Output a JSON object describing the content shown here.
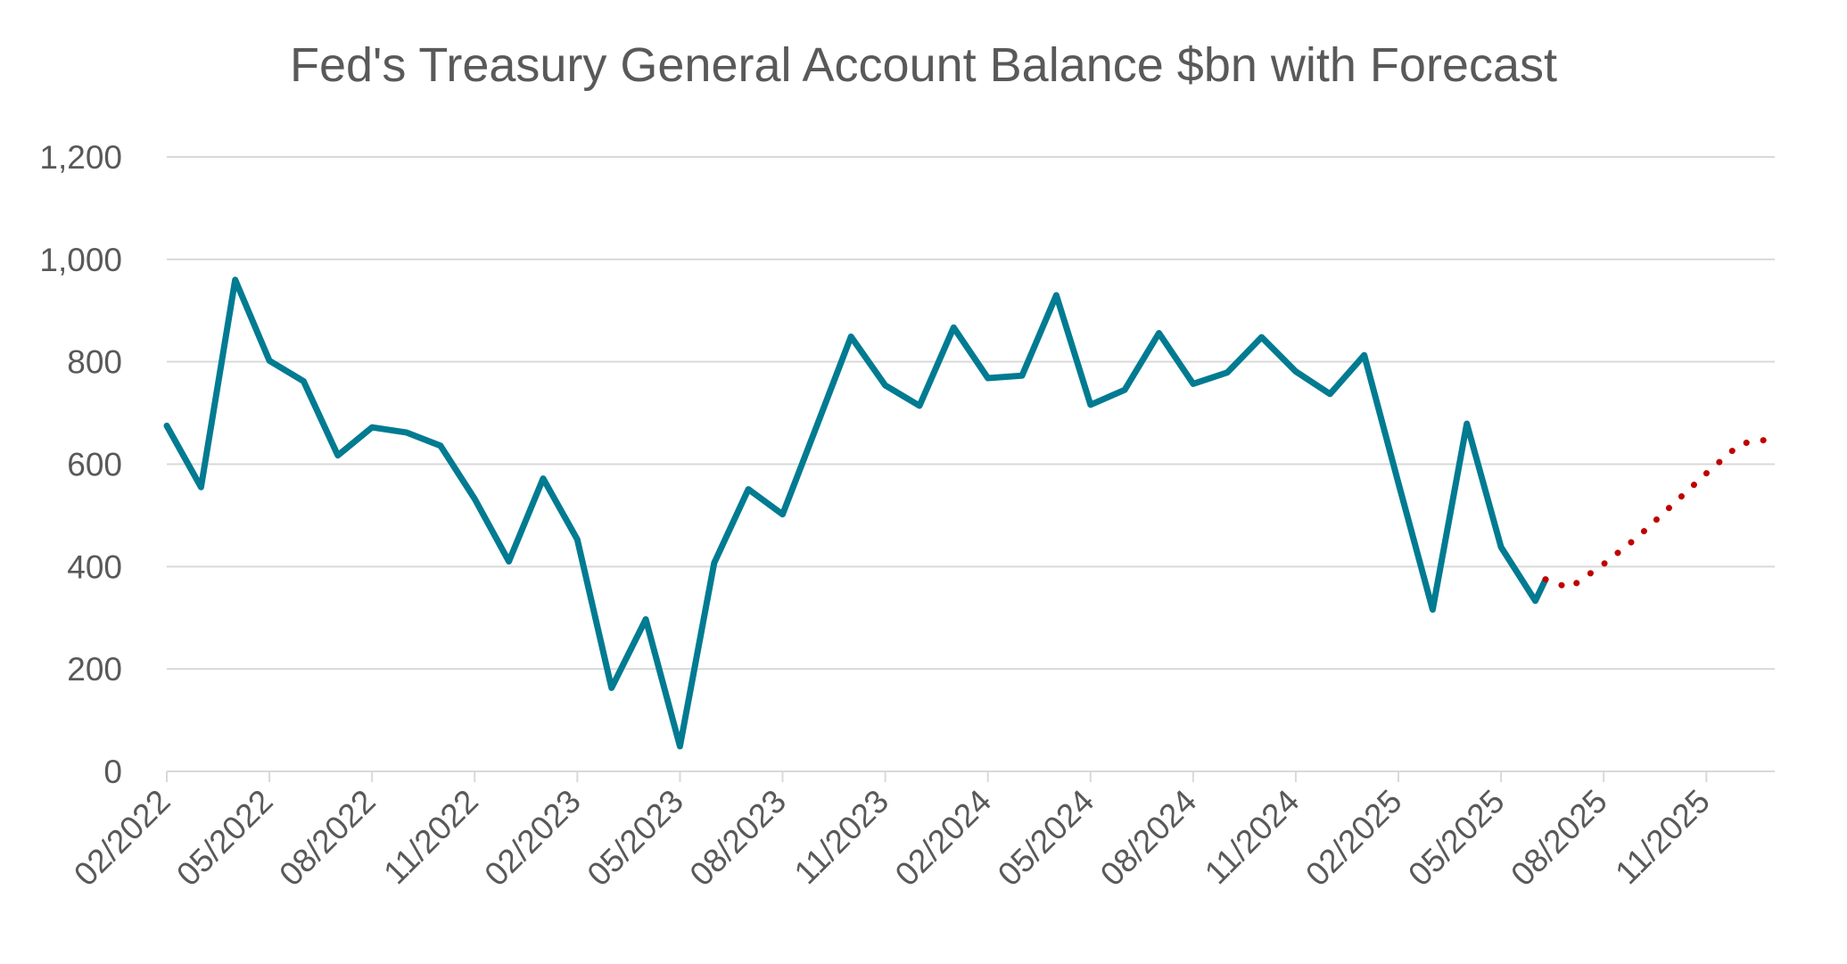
{
  "chart_data": {
    "type": "line",
    "title": "Fed's Treasury General Account Balance $bn with Forecast",
    "xlabel": "",
    "ylabel": "",
    "ylim": [
      0,
      1200
    ],
    "yticks": [
      "0",
      "200",
      "400",
      "600",
      "800",
      "1,000",
      "1,200"
    ],
    "ytick_values": [
      0,
      200,
      400,
      600,
      800,
      1000,
      1200
    ],
    "xlim": [
      "2022-02",
      "2026-01"
    ],
    "xticks": [
      "02/2022",
      "05/2022",
      "08/2022",
      "11/2022",
      "02/2023",
      "05/2023",
      "08/2023",
      "11/2023",
      "02/2024",
      "05/2024",
      "08/2024",
      "11/2024",
      "02/2025",
      "05/2025",
      "08/2025",
      "11/2025"
    ],
    "xtick_dates": [
      "2022-02",
      "2022-05",
      "2022-08",
      "2022-11",
      "2023-02",
      "2023-05",
      "2023-08",
      "2023-11",
      "2024-02",
      "2024-05",
      "2024-08",
      "2024-11",
      "2025-02",
      "2025-05",
      "2025-08",
      "2025-11"
    ],
    "grid": "horizontal",
    "legend": "none",
    "series": [
      {
        "style": "solid",
        "color": "#007B91",
        "points": [
          [
            "2022-02",
            675
          ],
          [
            "2022-03",
            555
          ],
          [
            "2022-04",
            960
          ],
          [
            "2022-05",
            802
          ],
          [
            "2022-06",
            762
          ],
          [
            "2022-07",
            617
          ],
          [
            "2022-08",
            672
          ],
          [
            "2022-09",
            662
          ],
          [
            "2022-10",
            636
          ],
          [
            "2022-11",
            532
          ],
          [
            "2022-12",
            410
          ],
          [
            "2023-01",
            572
          ],
          [
            "2023-02",
            453
          ],
          [
            "2023-03",
            163
          ],
          [
            "2023-04",
            297
          ],
          [
            "2023-05",
            49
          ],
          [
            "2023-06",
            407
          ],
          [
            "2023-07",
            551
          ],
          [
            "2023-08",
            502
          ],
          [
            "2023-09",
            675
          ],
          [
            "2023-10",
            849
          ],
          [
            "2023-11",
            754
          ],
          [
            "2023-12",
            714
          ],
          [
            "2024-01",
            867
          ],
          [
            "2024-02",
            768
          ],
          [
            "2024-03",
            773
          ],
          [
            "2024-04",
            930
          ],
          [
            "2024-05",
            716
          ],
          [
            "2024-06",
            745
          ],
          [
            "2024-07",
            856
          ],
          [
            "2024-08",
            757
          ],
          [
            "2024-09",
            779
          ],
          [
            "2024-10",
            848
          ],
          [
            "2024-11",
            781
          ],
          [
            "2024-12",
            737
          ],
          [
            "2025-01",
            813
          ],
          [
            "2025-02",
            563
          ],
          [
            "2025-03",
            316
          ],
          [
            "2025-04",
            679
          ],
          [
            "2025-05",
            438
          ],
          [
            "2025-06",
            333
          ],
          [
            "2025-06-10",
            375
          ]
        ]
      },
      {
        "style": "dotted",
        "color": "#C00000",
        "points": [
          [
            "2025-06-10",
            375
          ],
          [
            "2025-07",
            358
          ],
          [
            "2025-08",
            405
          ],
          [
            "2025-09",
            458
          ],
          [
            "2025-10",
            520
          ],
          [
            "2025-11",
            582
          ],
          [
            "2025-12",
            640
          ],
          [
            "2026-01",
            650
          ]
        ]
      }
    ]
  }
}
